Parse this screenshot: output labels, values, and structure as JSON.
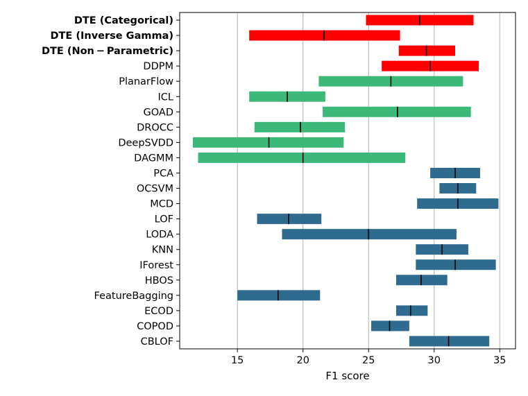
{
  "chart_data": {
    "type": "bar",
    "orientation": "horizontal-range",
    "xlabel": "F1 score",
    "ylabel": "",
    "xlim": [
      10.6,
      36.2
    ],
    "xticks": [
      15,
      20,
      25,
      30,
      35
    ],
    "grid": "vertical",
    "colors": {
      "dte": "#ff0000",
      "deep": "#3cb878",
      "classical": "#2e6b8f",
      "median": "#000000",
      "grid": "#b0b0b0"
    },
    "rows": [
      {
        "label": "DTE (Categorical)",
        "bold": true,
        "group": "dte",
        "low": 24.8,
        "high": 33.0,
        "median": 28.9
      },
      {
        "label": "DTE (Inverse Gamma)",
        "bold": true,
        "group": "dte",
        "low": 15.9,
        "high": 27.4,
        "median": 21.6
      },
      {
        "label": "DTE (Non − Parametric)",
        "bold": true,
        "group": "dte",
        "low": 27.3,
        "high": 31.6,
        "median": 29.4
      },
      {
        "label": "DDPM",
        "bold": false,
        "group": "dte",
        "low": 26.0,
        "high": 33.4,
        "median": 29.7
      },
      {
        "label": "PlanarFlow",
        "bold": false,
        "group": "deep",
        "low": 21.2,
        "high": 32.2,
        "median": 26.7
      },
      {
        "label": "ICL",
        "bold": false,
        "group": "deep",
        "low": 15.9,
        "high": 21.7,
        "median": 18.8
      },
      {
        "label": "GOAD",
        "bold": false,
        "group": "deep",
        "low": 21.5,
        "high": 32.8,
        "median": 27.2
      },
      {
        "label": "DROCC",
        "bold": false,
        "group": "deep",
        "low": 16.3,
        "high": 23.2,
        "median": 19.8
      },
      {
        "label": "DeepSVDD",
        "bold": false,
        "group": "deep",
        "low": 11.6,
        "high": 23.1,
        "median": 17.4
      },
      {
        "label": "DAGMM",
        "bold": false,
        "group": "deep",
        "low": 12.0,
        "high": 27.8,
        "median": 20.0
      },
      {
        "label": "PCA",
        "bold": false,
        "group": "classical",
        "low": 29.7,
        "high": 33.5,
        "median": 31.6
      },
      {
        "label": "OCSVM",
        "bold": false,
        "group": "classical",
        "low": 30.4,
        "high": 33.2,
        "median": 31.8
      },
      {
        "label": "MCD",
        "bold": false,
        "group": "classical",
        "low": 28.7,
        "high": 34.9,
        "median": 31.8
      },
      {
        "label": "LOF",
        "bold": false,
        "group": "classical",
        "low": 16.5,
        "high": 21.4,
        "median": 18.9
      },
      {
        "label": "LODA",
        "bold": false,
        "group": "classical",
        "low": 18.4,
        "high": 31.7,
        "median": 25.0
      },
      {
        "label": "KNN",
        "bold": false,
        "group": "classical",
        "low": 28.6,
        "high": 32.6,
        "median": 30.6
      },
      {
        "label": "IForest",
        "bold": false,
        "group": "classical",
        "low": 28.6,
        "high": 34.7,
        "median": 31.6
      },
      {
        "label": "HBOS",
        "bold": false,
        "group": "classical",
        "low": 27.1,
        "high": 31.0,
        "median": 29.0
      },
      {
        "label": "FeatureBagging",
        "bold": false,
        "group": "classical",
        "low": 15.0,
        "high": 21.3,
        "median": 18.1
      },
      {
        "label": "ECOD",
        "bold": false,
        "group": "classical",
        "low": 27.1,
        "high": 29.5,
        "median": 28.2
      },
      {
        "label": "COPOD",
        "bold": false,
        "group": "classical",
        "low": 25.2,
        "high": 28.1,
        "median": 26.6
      },
      {
        "label": "CBLOF",
        "bold": false,
        "group": "classical",
        "low": 28.1,
        "high": 34.2,
        "median": 31.1
      }
    ]
  }
}
